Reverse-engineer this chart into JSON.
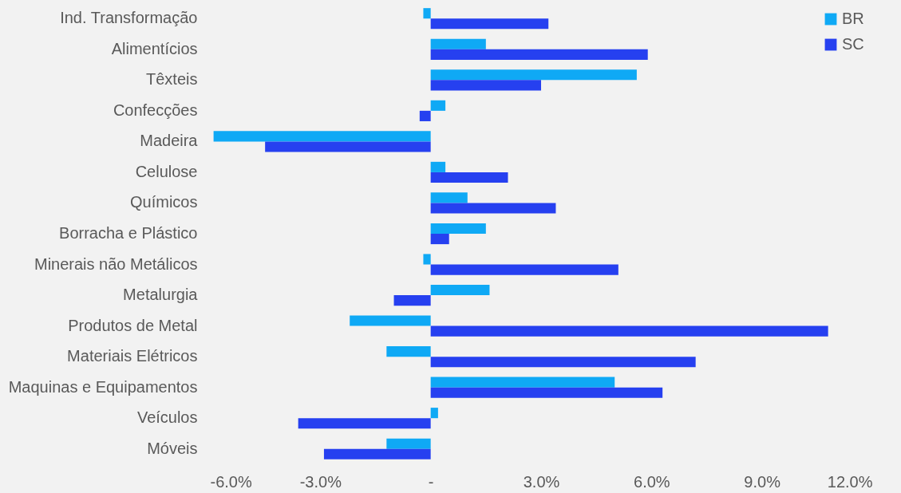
{
  "chart_data": {
    "type": "bar",
    "orientation": "horizontal",
    "categories": [
      "Ind. Transformação",
      "Alimentícios",
      "Têxteis",
      "Confecções",
      "Madeira",
      "Celulose",
      "Químicos",
      "Borracha e Plástico",
      "Minerais não Metálicos",
      "Metalurgia",
      "Produtos de Metal",
      "Materiais Elétricos",
      "Maquinas e Equipamentos",
      "Veículos",
      "Móveis"
    ],
    "series": [
      {
        "name": "BR",
        "color": "#0fa9f5",
        "values": [
          -0.2,
          1.5,
          5.6,
          0.4,
          -5.9,
          0.4,
          1.0,
          1.5,
          -0.2,
          1.6,
          -2.2,
          -1.2,
          5.0,
          0.2,
          -1.2
        ]
      },
      {
        "name": "SC",
        "color": "#2640f0",
        "values": [
          3.2,
          5.9,
          3.0,
          -0.3,
          -4.5,
          2.1,
          3.4,
          0.5,
          5.1,
          -1.0,
          10.8,
          7.2,
          6.3,
          -3.6,
          -2.9
        ]
      }
    ],
    "xlim": [
      -6,
      12
    ],
    "xticks": [
      {
        "value": -6,
        "label": "-6.0%"
      },
      {
        "value": -3,
        "label": "-3.0%"
      },
      {
        "value": 0,
        "label": "-"
      },
      {
        "value": 3,
        "label": "3.0%"
      },
      {
        "value": 6,
        "label": "6.0%"
      },
      {
        "value": 9,
        "label": "9.0%"
      },
      {
        "value": 12,
        "label": "12.0%"
      }
    ],
    "grid": false,
    "legend": "top right"
  }
}
